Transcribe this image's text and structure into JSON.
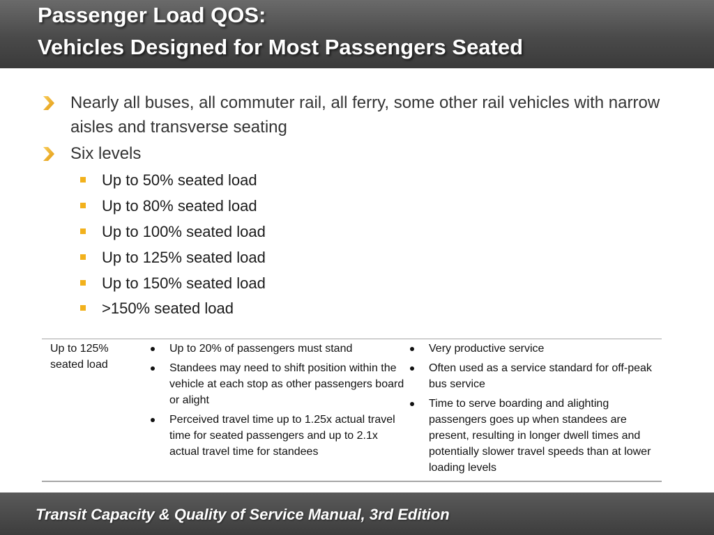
{
  "header": {
    "title_line1": "Passenger Load QOS:",
    "title_line2": "Vehicles Designed for Most Passengers Seated"
  },
  "bullets": [
    {
      "text": "Nearly all buses, all commuter rail, all ferry, some other rail vehicles with narrow aisles and transverse seating"
    },
    {
      "text": "Six levels"
    }
  ],
  "levels": [
    "Up to 50% seated load",
    "Up to 80% seated load",
    "Up to 100% seated load",
    "Up to 125% seated load",
    "Up to 150% seated load",
    ">150% seated load"
  ],
  "table": {
    "level_label": "Up to 125% seated load",
    "passenger_effects": [
      "Up to 20% of passengers must stand",
      "Standees may need to shift position within the vehicle at each stop as other passengers board or alight",
      "Perceived travel time up to 1.25x actual travel time for seated passengers and up to 2.1x actual travel time for standees"
    ],
    "operator_effects": [
      "Very productive service",
      "Often used as a service standard for off-peak bus service",
      "Time to serve boarding and alighting passengers goes up when standees are present, resulting in longer dwell times and potentially slower travel speeds than at lower loading levels"
    ]
  },
  "footer": {
    "text": "Transit Capacity & Quality of Service Manual, 3rd Edition"
  },
  "colors": {
    "accent": "#f2b11c",
    "title_bar": "#4a4a4a",
    "footer_bar": "#3d3d3d"
  }
}
